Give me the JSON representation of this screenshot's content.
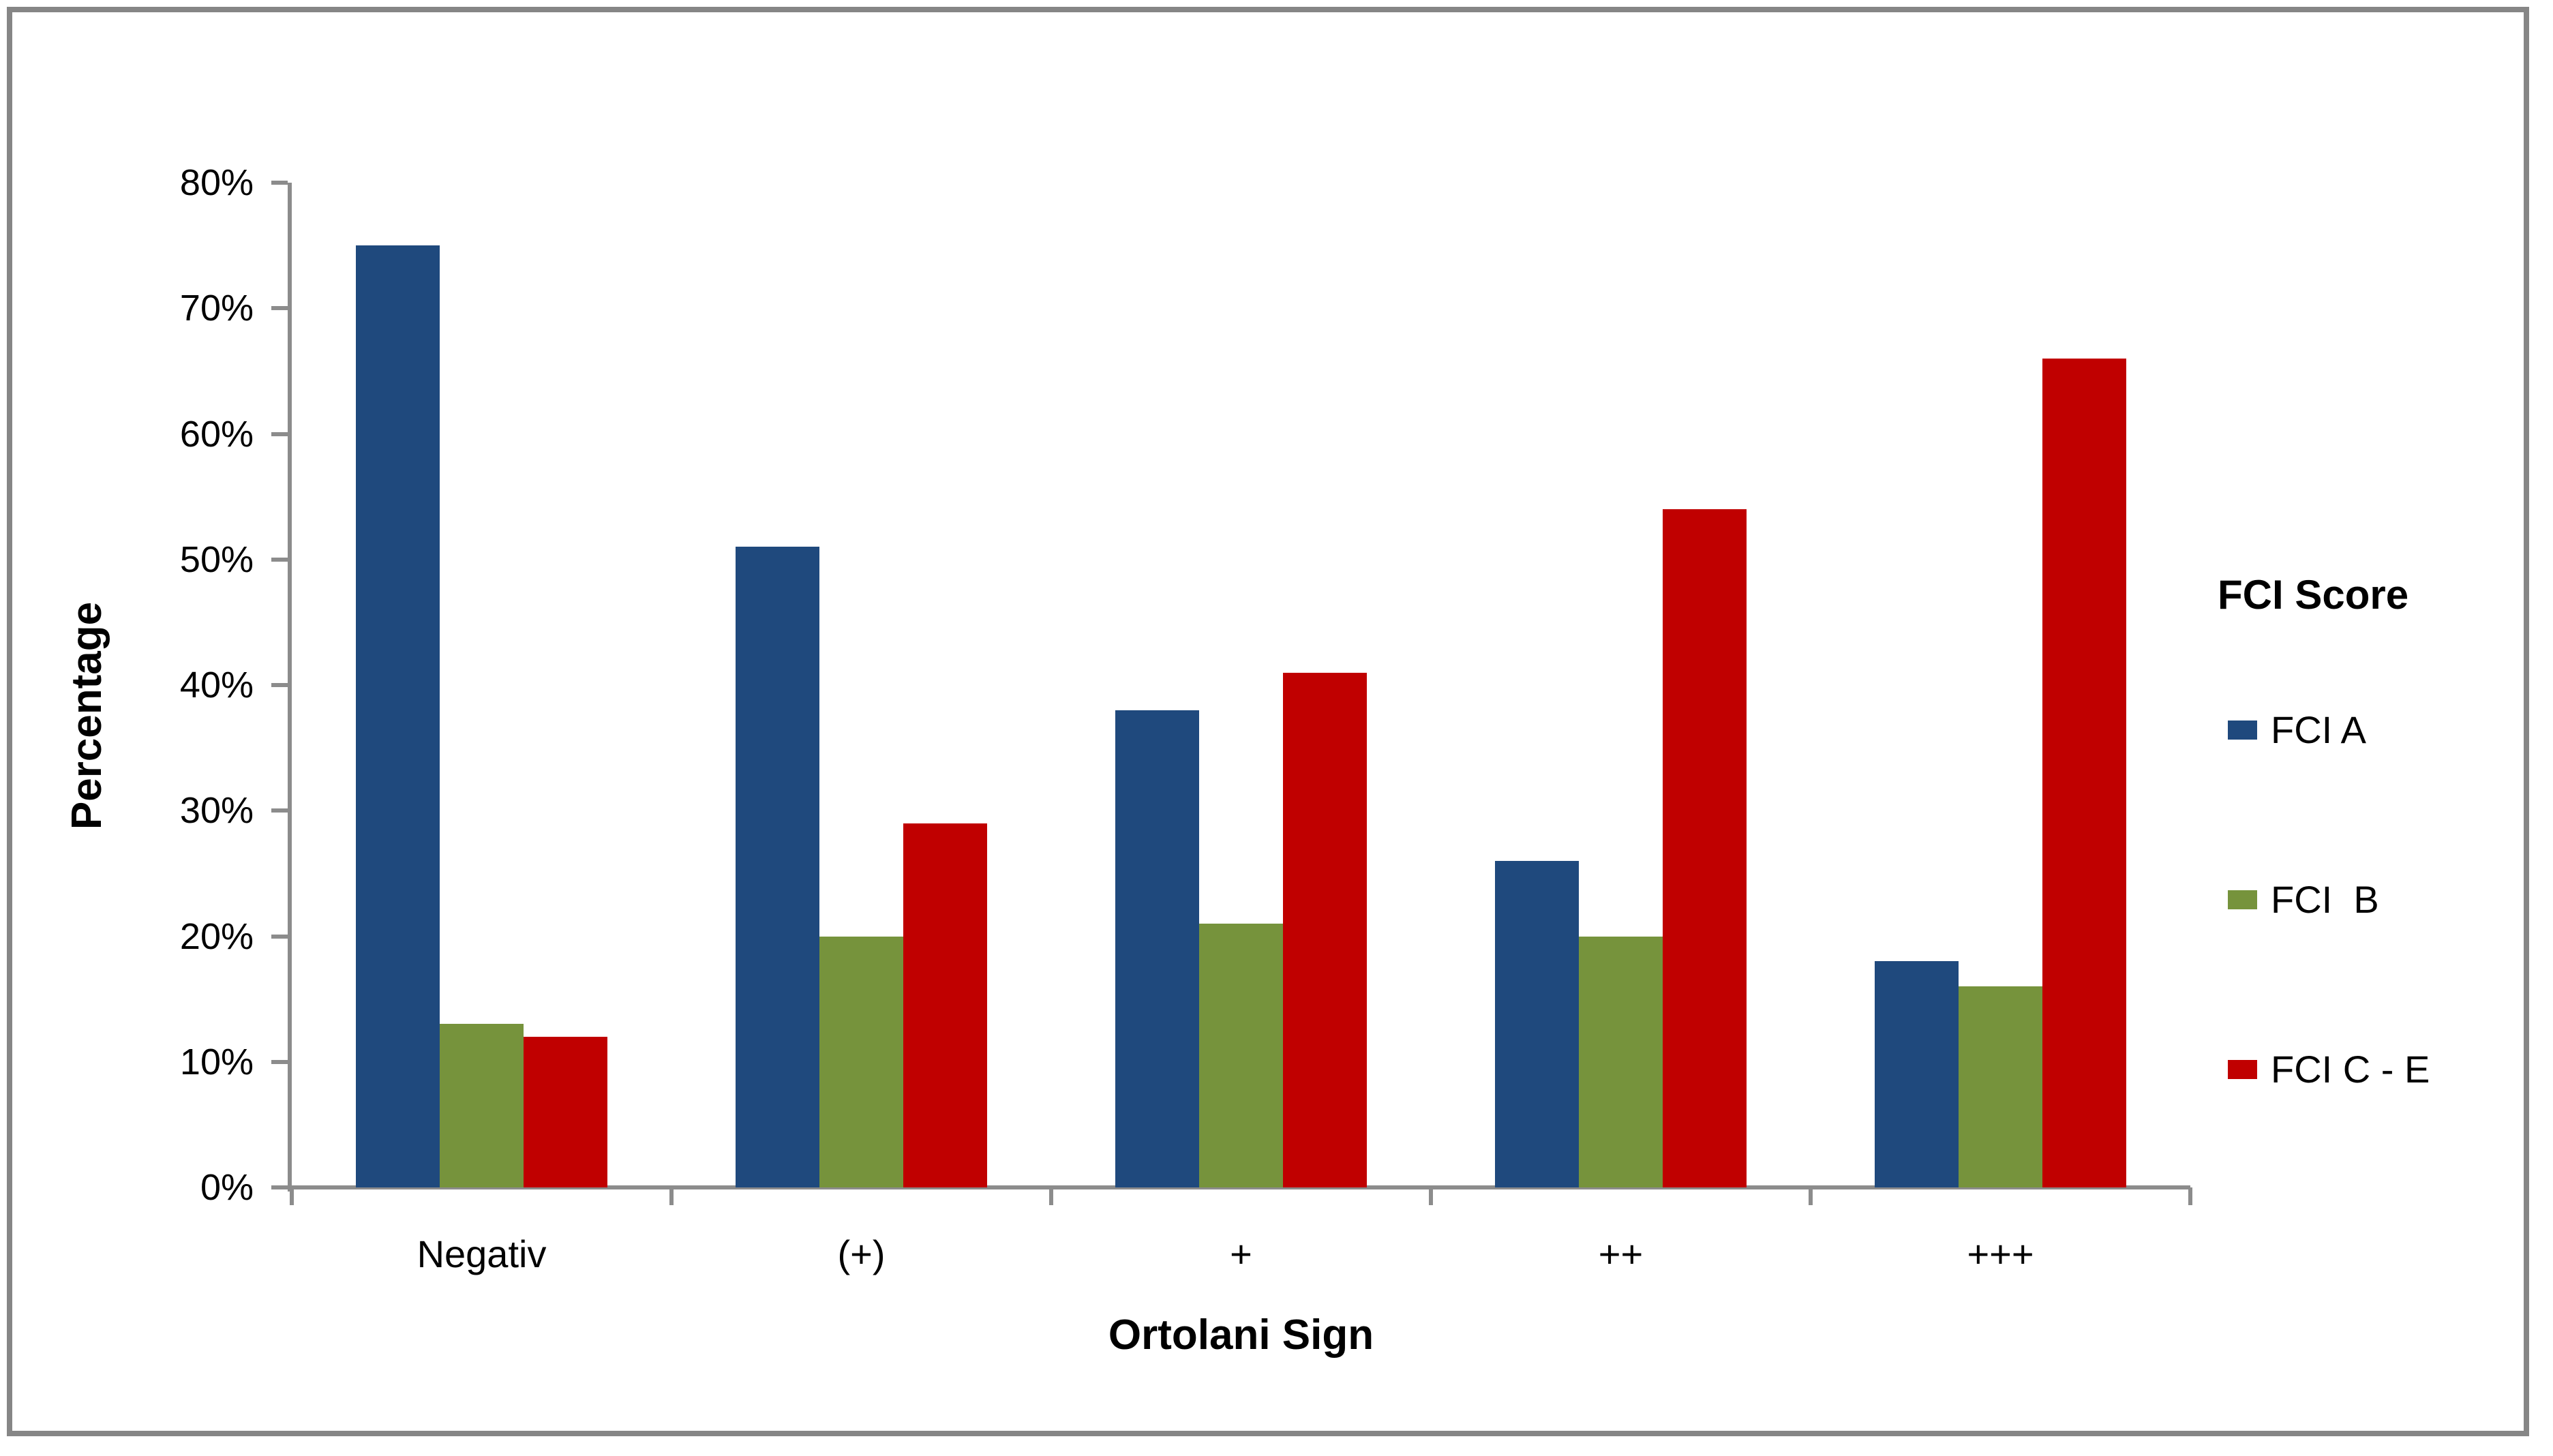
{
  "chart_data": {
    "type": "bar",
    "categories": [
      "Negativ",
      "(+)",
      "+",
      "++",
      "+++"
    ],
    "series": [
      {
        "name": "FCI A",
        "legend_label": "FCI A",
        "color": "#1F497D",
        "values": [
          75,
          51,
          38,
          26,
          18
        ]
      },
      {
        "name": "FCI B",
        "legend_label": "FCI  B",
        "color": "#76933C",
        "values": [
          13,
          20,
          21,
          20,
          16
        ]
      },
      {
        "name": "FCI C - E",
        "legend_label": "FCI C - E",
        "color": "#C00000",
        "values": [
          12,
          29,
          41,
          54,
          66
        ]
      }
    ],
    "xlabel": "Ortolani Sign",
    "ylabel": "Percentage",
    "ylim": [
      0,
      80
    ],
    "ytick_step": 10,
    "ytick_format": "percent",
    "ytick_labels": [
      "0%",
      "10%",
      "20%",
      "30%",
      "40%",
      "50%",
      "60%",
      "70%",
      "80%"
    ],
    "grid": false,
    "legend_title": "FCI Score",
    "legend_position": "right"
  }
}
